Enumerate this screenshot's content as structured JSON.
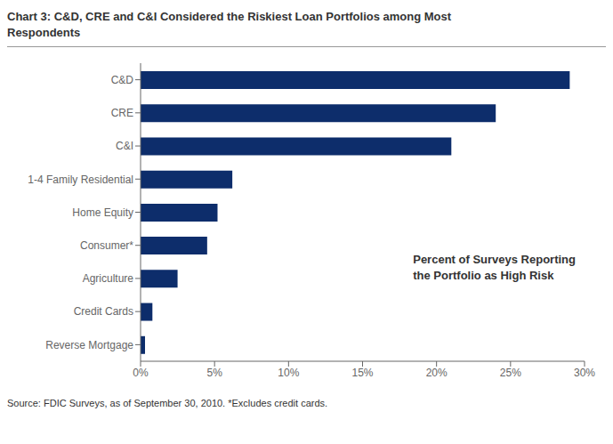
{
  "chart_data": {
    "type": "bar",
    "orientation": "horizontal",
    "title": "Chart 3: C&D, CRE and C&I Considered the Riskiest Loan Portfolios among Most\nRespondents",
    "categories": [
      "C&D",
      "CRE",
      "C&I",
      "1-4 Family Residential",
      "Home Equity",
      "Consumer*",
      "Agriculture",
      "Credit Cards",
      "Reverse Mortgage"
    ],
    "values": [
      29.0,
      24.0,
      21.0,
      6.2,
      5.2,
      4.5,
      2.5,
      0.8,
      0.3
    ],
    "color": "#0d2d6b",
    "xlim": [
      0,
      30
    ],
    "xticks": [
      {
        "value": 0,
        "label": "0%"
      },
      {
        "value": 5,
        "label": "5%"
      },
      {
        "value": 10,
        "label": "10%"
      },
      {
        "value": 15,
        "label": "15%"
      },
      {
        "value": 20,
        "label": "20%"
      },
      {
        "value": 25,
        "label": "25%"
      },
      {
        "value": 30,
        "label": "30%"
      }
    ],
    "grid": false,
    "annotation": "Percent of Surveys Reporting\nthe Portfolio as High Risk",
    "source": "Source: FDIC Surveys, as of September 30, 2010.  *Excludes credit cards."
  }
}
